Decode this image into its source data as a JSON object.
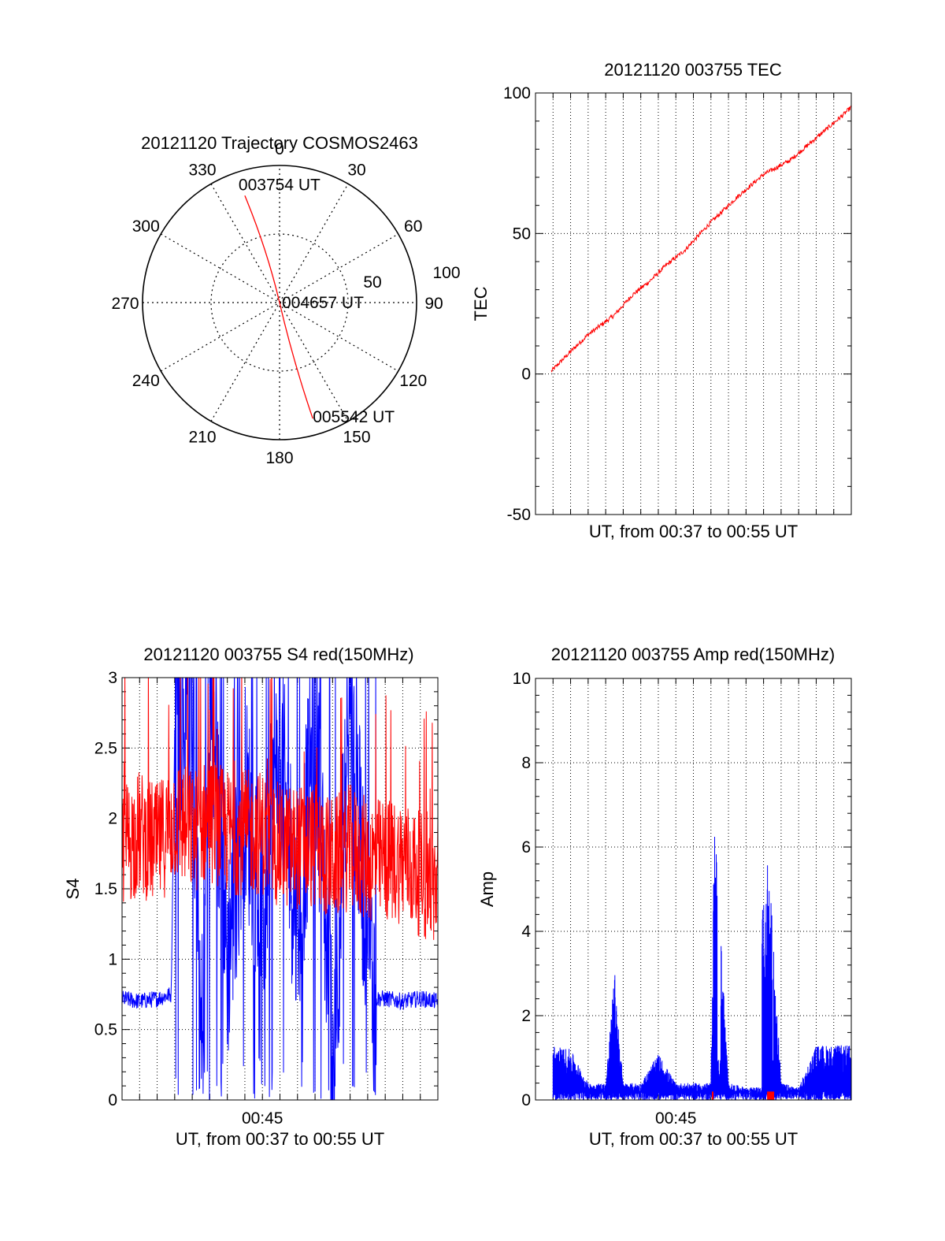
{
  "chart_data": [
    {
      "type": "polar",
      "title": "20121120 Trajectory COSMOS2463",
      "angle_labels": [
        "0",
        "30",
        "60",
        "90",
        "120",
        "150",
        "180",
        "210",
        "240",
        "270",
        "300",
        "330"
      ],
      "radial_labels": [
        "50",
        "100"
      ],
      "radial_max": 100,
      "grid": true,
      "colors": {
        "trajectory": "#ff0000"
      },
      "points": [
        {
          "label": "003754 UT",
          "azimuth": 342,
          "distance": 82
        },
        {
          "label": "004657 UT",
          "azimuth": 0,
          "distance": 0
        },
        {
          "label": "005542 UT",
          "azimuth": 164,
          "distance": 88
        }
      ]
    },
    {
      "type": "line",
      "title": "20121120 003755 TEC",
      "xlabel": "UT, from 00:37 to 00:55 UT",
      "ylabel": "TEC",
      "xlim": [
        37.0,
        55.0
      ],
      "ylim": [
        -50,
        100
      ],
      "yticks": [
        "100",
        "50",
        "0",
        "-50"
      ],
      "grid": true,
      "series": [
        {
          "color": "#ff0000",
          "x": [
            37.9,
            39.0,
            40.0,
            41.5,
            42.5,
            43.5,
            44.5,
            45.5,
            47.0,
            48.5,
            50.0,
            51.5,
            53.0,
            54.5,
            55.0
          ],
          "values": [
            1,
            8,
            14,
            21,
            28,
            33,
            39,
            44,
            54,
            63,
            71,
            76,
            84,
            92,
            95
          ]
        }
      ]
    },
    {
      "type": "line",
      "title": "20121120 003755 S4 red(150MHz)",
      "xlabel": "UT, from 00:37 to 00:55 UT",
      "ylabel": "S4",
      "xlim": [
        37.0,
        55.0
      ],
      "ylim": [
        0,
        3
      ],
      "yticks": [
        "3",
        "2.5",
        "2",
        "1.5",
        "1",
        "0.5",
        "0"
      ],
      "xticks": [
        "00:45"
      ],
      "grid": true,
      "series": [
        {
          "color": "#ff0000",
          "x": [
            37.0,
            38.0,
            39.0,
            40.0,
            41.0,
            42.0,
            43.0,
            44.0,
            45.0,
            46.0,
            47.0,
            48.0,
            49.0,
            50.0,
            51.0,
            52.0,
            53.0,
            54.0,
            55.0
          ],
          "values": [
            1.8,
            1.9,
            1.8,
            2.0,
            1.9,
            2.0,
            1.9,
            1.9,
            1.9,
            1.8,
            1.8,
            1.8,
            1.7,
            1.8,
            1.7,
            1.7,
            1.7,
            1.6,
            1.5
          ]
        },
        {
          "color": "#0000ff",
          "x": [
            37.0,
            38.0,
            39.0,
            39.8,
            40.0,
            41.0,
            41.5,
            42.0,
            43.0,
            44.0,
            45.0,
            46.0,
            47.0,
            48.0,
            49.0,
            50.0,
            51.0,
            51.5,
            52.0,
            53.0,
            54.0,
            55.0
          ],
          "values": [
            0.72,
            0.7,
            0.72,
            0.75,
            2.6,
            2.8,
            0.1,
            2.9,
            1.0,
            2.2,
            1.3,
            2.5,
            1.2,
            2.7,
            0.28,
            2.8,
            1.1,
            0.72,
            0.72,
            0.7,
            0.72,
            0.7
          ]
        }
      ]
    },
    {
      "type": "line",
      "title": "20121120 003755 Amp red(150MHz)",
      "xlabel": "UT, from 00:37 to 00:55 UT",
      "ylabel": "Amp",
      "xlim": [
        37.0,
        55.0
      ],
      "ylim": [
        0,
        10
      ],
      "yticks": [
        "10",
        "8",
        "6",
        "4",
        "2",
        "0"
      ],
      "xticks": [
        "00:45"
      ],
      "grid": true,
      "series": [
        {
          "color": "#0000ff",
          "x": [
            37.0,
            38.0,
            39.0,
            40.0,
            41.0,
            41.5,
            42.0,
            43.0,
            44.0,
            45.0,
            46.0,
            47.0,
            47.2,
            48.0,
            49.0,
            50.0,
            50.3,
            51.0,
            52.0,
            53.0,
            54.0,
            55.0
          ],
          "values": [
            1.2,
            1.3,
            1.2,
            0.4,
            0.4,
            3.0,
            0.4,
            0.4,
            1.1,
            0.4,
            0.4,
            0.4,
            6.9,
            0.4,
            0.3,
            0.3,
            6.0,
            0.4,
            0.3,
            1.3,
            1.3,
            1.3
          ]
        }
      ]
    }
  ]
}
